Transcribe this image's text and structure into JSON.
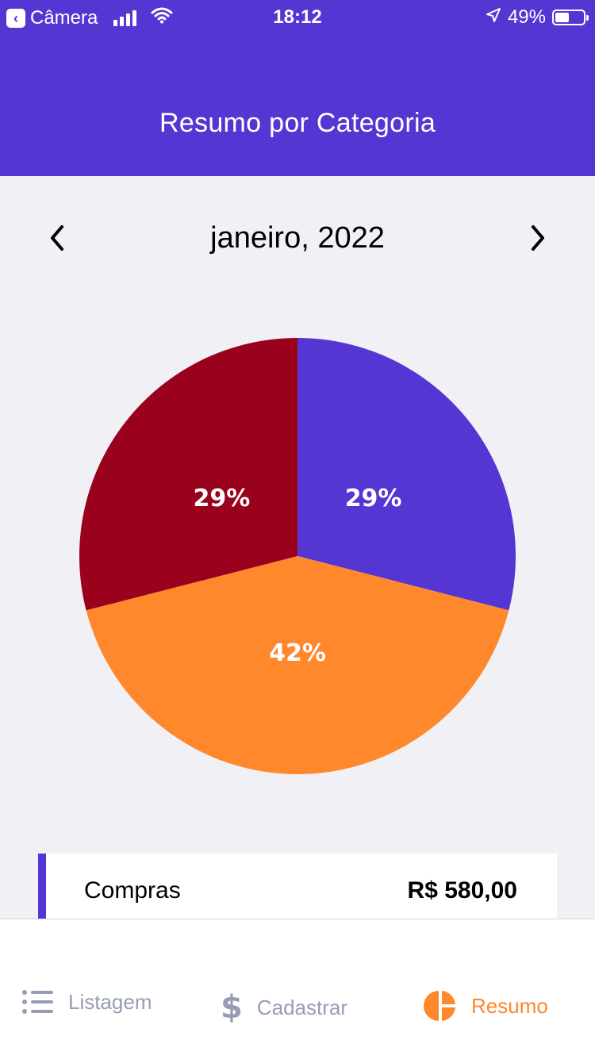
{
  "status_bar": {
    "back_app": "Câmera",
    "time": "18:12",
    "battery": "49%",
    "battery_level": 0.49
  },
  "header": {
    "title": "Resumo por Categoria"
  },
  "month_selector": {
    "label": "janeiro, 2022",
    "prev_icon": "chevron-left-icon",
    "next_icon": "chevron-right-icon"
  },
  "chart_data": {
    "type": "pie",
    "slices": [
      {
        "label": "29%",
        "value": 29,
        "color": "#5636d3"
      },
      {
        "label": "42%",
        "value": 42,
        "color": "#ff872c"
      },
      {
        "label": "29%",
        "value": 29,
        "color": "#9a011d"
      }
    ]
  },
  "categories": [
    {
      "name": "Compras",
      "amount": "R$ 580,00",
      "color": "#5636d3"
    }
  ],
  "tabs": [
    {
      "label": "Listagem",
      "icon": "list-icon",
      "active": false
    },
    {
      "label": "Cadastrar",
      "icon": "dollar-icon",
      "active": false
    },
    {
      "label": "Resumo",
      "icon": "pie-chart-icon",
      "active": true
    }
  ],
  "colors": {
    "primary": "#5636d3",
    "accent": "#ff872c",
    "secondary": "#9a011d",
    "background": "#f0f0f5",
    "inactive_text": "#969cb3"
  }
}
